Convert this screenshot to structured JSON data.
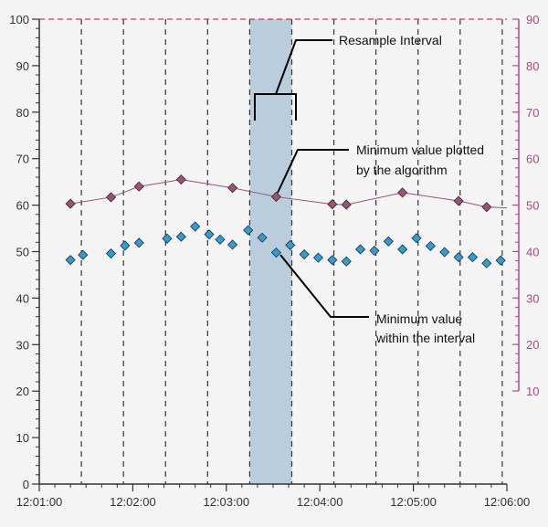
{
  "chart_data": {
    "type": "scatter",
    "title": "",
    "x_tick_labels": [
      "12:01:00",
      "12:02:00",
      "12:03:00",
      "12:04:00",
      "12:05:00",
      "12:06:00"
    ],
    "x_range_seconds_after_12_01_00": [
      0,
      300
    ],
    "y_left": {
      "range": [
        0,
        100
      ],
      "ticks": [
        "0",
        "10",
        "20",
        "30",
        "40",
        "50",
        "60",
        "70",
        "80",
        "90",
        "100"
      ]
    },
    "y_right": {
      "range": [
        10,
        90
      ],
      "ticks": [
        "10",
        "20",
        "30",
        "40",
        "50",
        "60",
        "70",
        "80",
        "90"
      ],
      "color": "#b04a7e"
    },
    "reference_line_y_left": 100,
    "resample_interval_lines_seconds": [
      0,
      27,
      54,
      81,
      108,
      135,
      162,
      189,
      216,
      243,
      270,
      297
    ],
    "highlighted_interval_seconds": [
      135,
      162
    ],
    "series": [
      {
        "marker": "diamond",
        "color": "#2a9fd8",
        "axis": "left",
        "points": [
          [
            20,
            48.2
          ],
          [
            28,
            49.3
          ],
          [
            46,
            49.6
          ],
          [
            55,
            51.3
          ],
          [
            64,
            51.9
          ],
          [
            82,
            52.8
          ],
          [
            91,
            53.2
          ],
          [
            100,
            55.4
          ],
          [
            109,
            53.7
          ],
          [
            116,
            52.6
          ],
          [
            124,
            51.5
          ],
          [
            134,
            54.6
          ],
          [
            143,
            53.0
          ],
          [
            152,
            49.8
          ],
          [
            161,
            51.4
          ],
          [
            170,
            49.4
          ],
          [
            179,
            48.7
          ],
          [
            188,
            48.2
          ],
          [
            197,
            47.9
          ],
          [
            206,
            50.5
          ],
          [
            215,
            50.2
          ],
          [
            224,
            52.2
          ],
          [
            233,
            50.5
          ],
          [
            242,
            52.9
          ],
          [
            251,
            51.2
          ],
          [
            260,
            49.9
          ],
          [
            269,
            48.8
          ],
          [
            278,
            48.8
          ],
          [
            287,
            47.5
          ],
          [
            296,
            48.1
          ]
        ]
      },
      {
        "marker": "diamond",
        "color": "#a05076",
        "axis": "left",
        "connected": true,
        "points": [
          [
            20,
            60.3
          ],
          [
            46,
            61.7
          ],
          [
            64,
            64.0
          ],
          [
            91,
            65.5
          ],
          [
            124,
            63.7
          ],
          [
            152,
            61.8
          ],
          [
            188,
            60.2
          ],
          [
            197,
            60.1
          ],
          [
            233,
            62.7
          ],
          [
            269,
            60.9
          ],
          [
            287,
            59.6
          ],
          [
            300,
            59.4
          ]
        ]
      }
    ],
    "annotations": [
      {
        "text": "Resample Interval"
      },
      {
        "lines": [
          "Minimum value plotted",
          "by the algorithm"
        ]
      },
      {
        "lines": [
          "Minimum value",
          "within the interval"
        ]
      }
    ]
  }
}
